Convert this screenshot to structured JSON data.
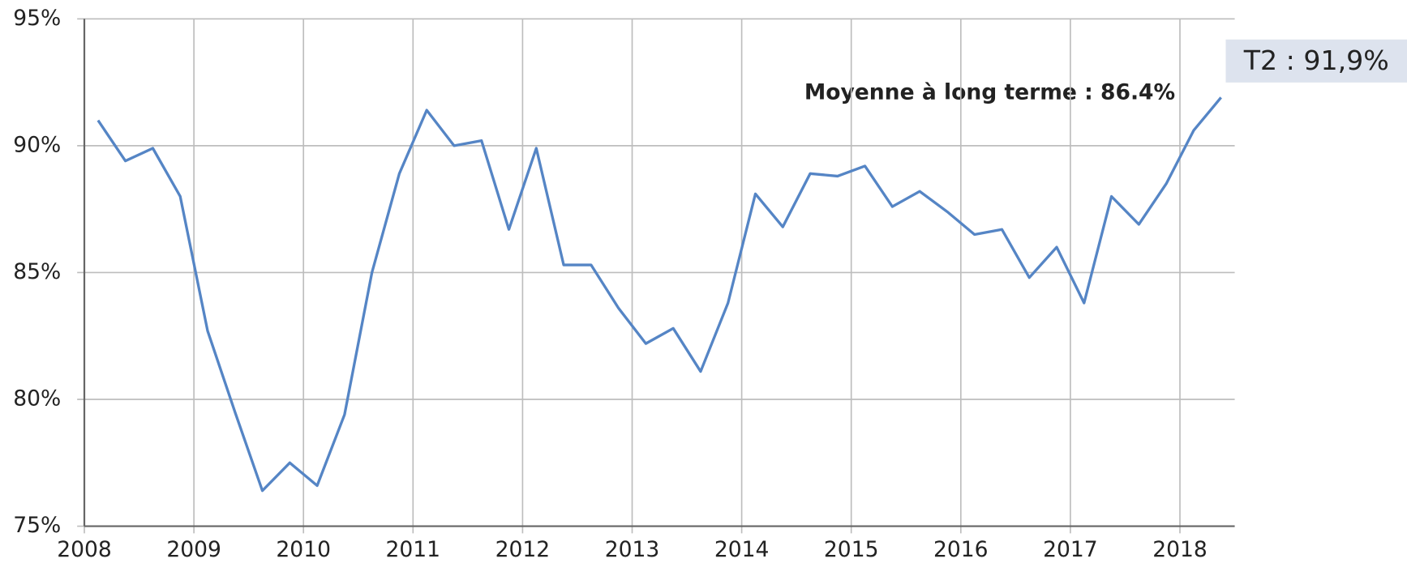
{
  "chart_data": {
    "type": "line",
    "annotations": [
      "Moyenne à long terme : 86.4%",
      "T2 : 91,9%"
    ],
    "x": [
      2008.125,
      2008.375,
      2008.625,
      2008.875,
      2009.125,
      2009.375,
      2009.625,
      2009.875,
      2010.125,
      2010.375,
      2010.625,
      2010.875,
      2011.125,
      2011.375,
      2011.625,
      2011.875,
      2012.125,
      2012.375,
      2012.625,
      2012.875,
      2013.125,
      2013.375,
      2013.625,
      2013.875,
      2014.125,
      2014.375,
      2014.625,
      2014.875,
      2015.125,
      2015.375,
      2015.625,
      2015.875,
      2016.125,
      2016.375,
      2016.625,
      2016.875,
      2017.125,
      2017.375,
      2017.625,
      2017.875,
      2018.125,
      2018.375
    ],
    "series": [
      {
        "color": "#5585c5",
        "values": [
          91.0,
          89.4,
          89.9,
          88.0,
          82.7,
          79.5,
          76.4,
          77.5,
          76.6,
          79.4,
          85.0,
          88.9,
          91.4,
          90.0,
          90.2,
          86.7,
          89.9,
          85.3,
          85.3,
          83.6,
          82.2,
          82.8,
          81.1,
          83.8,
          88.1,
          86.8,
          88.9,
          88.8,
          89.2,
          87.6,
          88.2,
          87.4,
          86.5,
          86.7,
          84.8,
          86.0,
          83.8,
          88.0,
          86.9,
          88.5,
          90.6,
          91.9
        ]
      }
    ],
    "xlim": [
      2008,
      2018.5
    ],
    "xticks": [
      2008,
      2009,
      2010,
      2011,
      2012,
      2013,
      2014,
      2015,
      2016,
      2017,
      2018
    ],
    "ylim": [
      75,
      95
    ],
    "yticks": [
      {
        "value": 75,
        "label": "75%"
      },
      {
        "value": 80,
        "label": "80%"
      },
      {
        "value": 85,
        "label": "85%"
      },
      {
        "value": 90,
        "label": "90%"
      },
      {
        "value": 95,
        "label": "95%"
      }
    ],
    "grid": true
  }
}
